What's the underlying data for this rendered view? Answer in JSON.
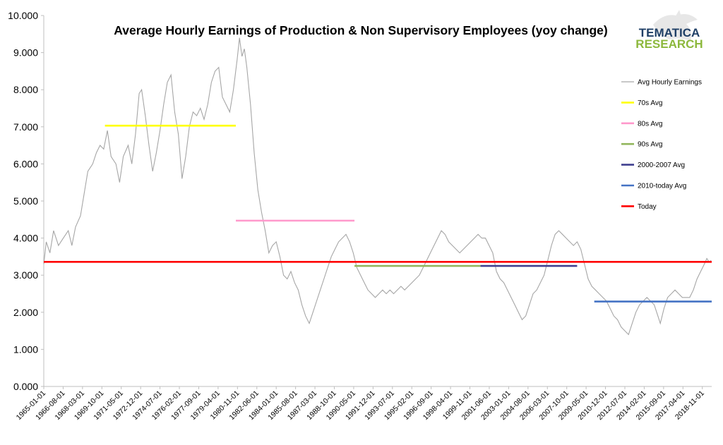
{
  "chart_data": {
    "type": "line",
    "title": "Average Hourly Earnings of Production & Non Supervisory Employees (yoy change)",
    "ylim": [
      0,
      10
    ],
    "y_ticks": [
      "0.000",
      "1.000",
      "2.000",
      "3.000",
      "4.000",
      "5.000",
      "6.000",
      "7.000",
      "8.000",
      "9.000",
      "10.000"
    ],
    "x_range": [
      1965.0,
      2019.6
    ],
    "x_ticks": [
      "1965-01-01",
      "1966-08-01",
      "1968-03-01",
      "1969-10-01",
      "1971-05-01",
      "1972-12-01",
      "1974-07-01",
      "1976-02-01",
      "1977-09-01",
      "1979-04-01",
      "1980-11-01",
      "1982-06-01",
      "1984-01-01",
      "1985-08-01",
      "1987-03-01",
      "1988-10-01",
      "1990-05-01",
      "1991-12-01",
      "1993-07-01",
      "1995-02-01",
      "1996-09-01",
      "1998-04-01",
      "1999-11-01",
      "2001-06-01",
      "2003-01-01",
      "2004-08-01",
      "2006-03-01",
      "2007-10-01",
      "2009-05-01",
      "2010-12-01",
      "2012-07-01",
      "2014-02-01",
      "2015-09-01",
      "2017-04-01",
      "2018-11-01"
    ],
    "series": [
      {
        "name": "Avg Hourly Earnings",
        "color": "#a6a6a6",
        "points": [
          [
            1965.0,
            3.3
          ],
          [
            1965.2,
            3.9
          ],
          [
            1965.5,
            3.6
          ],
          [
            1965.8,
            4.2
          ],
          [
            1966.2,
            3.8
          ],
          [
            1966.6,
            4.0
          ],
          [
            1967.0,
            4.2
          ],
          [
            1967.3,
            3.8
          ],
          [
            1967.6,
            4.3
          ],
          [
            1968.0,
            4.6
          ],
          [
            1968.3,
            5.2
          ],
          [
            1968.6,
            5.8
          ],
          [
            1969.0,
            6.0
          ],
          [
            1969.3,
            6.3
          ],
          [
            1969.6,
            6.5
          ],
          [
            1969.9,
            6.4
          ],
          [
            1970.2,
            6.9
          ],
          [
            1970.5,
            6.2
          ],
          [
            1970.9,
            6.0
          ],
          [
            1971.2,
            5.5
          ],
          [
            1971.5,
            6.2
          ],
          [
            1971.9,
            6.5
          ],
          [
            1972.2,
            6.0
          ],
          [
            1972.5,
            6.8
          ],
          [
            1972.8,
            7.9
          ],
          [
            1973.0,
            8.0
          ],
          [
            1973.3,
            7.3
          ],
          [
            1973.6,
            6.5
          ],
          [
            1973.9,
            5.8
          ],
          [
            1974.2,
            6.3
          ],
          [
            1974.5,
            6.9
          ],
          [
            1974.8,
            7.6
          ],
          [
            1975.1,
            8.2
          ],
          [
            1975.4,
            8.4
          ],
          [
            1975.7,
            7.4
          ],
          [
            1976.0,
            6.8
          ],
          [
            1976.3,
            5.6
          ],
          [
            1976.6,
            6.2
          ],
          [
            1976.9,
            7.0
          ],
          [
            1977.2,
            7.4
          ],
          [
            1977.5,
            7.3
          ],
          [
            1977.8,
            7.5
          ],
          [
            1978.1,
            7.2
          ],
          [
            1978.4,
            7.6
          ],
          [
            1978.7,
            8.2
          ],
          [
            1979.0,
            8.5
          ],
          [
            1979.3,
            8.6
          ],
          [
            1979.6,
            7.8
          ],
          [
            1979.9,
            7.6
          ],
          [
            1980.2,
            7.4
          ],
          [
            1980.5,
            8.0
          ],
          [
            1980.8,
            8.8
          ],
          [
            1981.0,
            9.4
          ],
          [
            1981.2,
            8.9
          ],
          [
            1981.4,
            9.1
          ],
          [
            1981.6,
            8.6
          ],
          [
            1981.9,
            7.6
          ],
          [
            1982.2,
            6.3
          ],
          [
            1982.5,
            5.3
          ],
          [
            1982.8,
            4.7
          ],
          [
            1983.1,
            4.2
          ],
          [
            1983.4,
            3.6
          ],
          [
            1983.7,
            3.8
          ],
          [
            1984.0,
            3.9
          ],
          [
            1984.3,
            3.5
          ],
          [
            1984.6,
            3.0
          ],
          [
            1984.9,
            2.9
          ],
          [
            1985.2,
            3.1
          ],
          [
            1985.5,
            2.8
          ],
          [
            1985.8,
            2.6
          ],
          [
            1986.1,
            2.2
          ],
          [
            1986.4,
            1.9
          ],
          [
            1986.7,
            1.7
          ],
          [
            1987.0,
            2.0
          ],
          [
            1987.3,
            2.3
          ],
          [
            1987.6,
            2.6
          ],
          [
            1987.9,
            2.9
          ],
          [
            1988.2,
            3.2
          ],
          [
            1988.5,
            3.5
          ],
          [
            1988.8,
            3.7
          ],
          [
            1989.1,
            3.9
          ],
          [
            1989.4,
            4.0
          ],
          [
            1989.7,
            4.1
          ],
          [
            1990.0,
            3.9
          ],
          [
            1990.3,
            3.6
          ],
          [
            1990.6,
            3.2
          ],
          [
            1990.9,
            3.0
          ],
          [
            1991.2,
            2.8
          ],
          [
            1991.5,
            2.6
          ],
          [
            1991.8,
            2.5
          ],
          [
            1992.1,
            2.4
          ],
          [
            1992.4,
            2.5
          ],
          [
            1992.7,
            2.6
          ],
          [
            1993.0,
            2.5
          ],
          [
            1993.3,
            2.6
          ],
          [
            1993.6,
            2.5
          ],
          [
            1993.9,
            2.6
          ],
          [
            1994.2,
            2.7
          ],
          [
            1994.5,
            2.6
          ],
          [
            1994.8,
            2.7
          ],
          [
            1995.1,
            2.8
          ],
          [
            1995.4,
            2.9
          ],
          [
            1995.7,
            3.0
          ],
          [
            1996.0,
            3.2
          ],
          [
            1996.3,
            3.4
          ],
          [
            1996.6,
            3.6
          ],
          [
            1996.9,
            3.8
          ],
          [
            1997.2,
            4.0
          ],
          [
            1997.5,
            4.2
          ],
          [
            1997.8,
            4.1
          ],
          [
            1998.1,
            3.9
          ],
          [
            1998.4,
            3.8
          ],
          [
            1998.7,
            3.7
          ],
          [
            1999.0,
            3.6
          ],
          [
            1999.3,
            3.7
          ],
          [
            1999.6,
            3.8
          ],
          [
            1999.9,
            3.9
          ],
          [
            2000.2,
            4.0
          ],
          [
            2000.5,
            4.1
          ],
          [
            2000.8,
            4.0
          ],
          [
            2001.1,
            4.0
          ],
          [
            2001.4,
            3.8
          ],
          [
            2001.7,
            3.6
          ],
          [
            2002.0,
            3.1
          ],
          [
            2002.3,
            2.9
          ],
          [
            2002.6,
            2.8
          ],
          [
            2002.9,
            2.6
          ],
          [
            2003.2,
            2.4
          ],
          [
            2003.5,
            2.2
          ],
          [
            2003.8,
            2.0
          ],
          [
            2004.1,
            1.8
          ],
          [
            2004.4,
            1.9
          ],
          [
            2004.7,
            2.2
          ],
          [
            2005.0,
            2.5
          ],
          [
            2005.3,
            2.6
          ],
          [
            2005.6,
            2.8
          ],
          [
            2005.9,
            3.0
          ],
          [
            2006.2,
            3.4
          ],
          [
            2006.5,
            3.8
          ],
          [
            2006.8,
            4.1
          ],
          [
            2007.1,
            4.2
          ],
          [
            2007.4,
            4.1
          ],
          [
            2007.7,
            4.0
          ],
          [
            2008.0,
            3.9
          ],
          [
            2008.3,
            3.8
          ],
          [
            2008.6,
            3.9
          ],
          [
            2008.9,
            3.7
          ],
          [
            2009.2,
            3.3
          ],
          [
            2009.5,
            2.9
          ],
          [
            2009.8,
            2.7
          ],
          [
            2010.1,
            2.6
          ],
          [
            2010.4,
            2.5
          ],
          [
            2010.7,
            2.4
          ],
          [
            2011.0,
            2.3
          ],
          [
            2011.3,
            2.1
          ],
          [
            2011.6,
            1.9
          ],
          [
            2011.9,
            1.8
          ],
          [
            2012.2,
            1.6
          ],
          [
            2012.5,
            1.5
          ],
          [
            2012.8,
            1.4
          ],
          [
            2013.1,
            1.7
          ],
          [
            2013.4,
            2.0
          ],
          [
            2013.7,
            2.2
          ],
          [
            2014.0,
            2.3
          ],
          [
            2014.3,
            2.4
          ],
          [
            2014.6,
            2.3
          ],
          [
            2014.9,
            2.2
          ],
          [
            2015.2,
            1.9
          ],
          [
            2015.4,
            1.7
          ],
          [
            2015.7,
            2.1
          ],
          [
            2016.0,
            2.4
          ],
          [
            2016.3,
            2.5
          ],
          [
            2016.6,
            2.6
          ],
          [
            2016.9,
            2.5
          ],
          [
            2017.2,
            2.4
          ],
          [
            2017.5,
            2.4
          ],
          [
            2017.8,
            2.4
          ],
          [
            2018.1,
            2.6
          ],
          [
            2018.4,
            2.9
          ],
          [
            2018.7,
            3.1
          ],
          [
            2019.0,
            3.3
          ],
          [
            2019.2,
            3.45
          ],
          [
            2019.4,
            3.35
          ],
          [
            2019.55,
            3.4
          ]
        ]
      },
      {
        "name": "70s Avg",
        "color": "#ffff00",
        "value": 7.03,
        "x_start": 1970.0,
        "x_end": 1980.7
      },
      {
        "name": "80s Avg",
        "color": "#ff99cc",
        "value": 4.47,
        "x_start": 1980.7,
        "x_end": 1990.4
      },
      {
        "name": "90s Avg",
        "color": "#92b65c",
        "value": 3.25,
        "x_start": 1990.4,
        "x_end": 2000.7
      },
      {
        "name": "2000-2007 Avg",
        "color": "#3f3f8f",
        "value": 3.25,
        "x_start": 2000.7,
        "x_end": 2008.6
      },
      {
        "name": "2010-today Avg",
        "color": "#4472c4",
        "value": 2.29,
        "x_start": 2010.0,
        "x_end": 2019.6
      },
      {
        "name": "Today",
        "color": "#ff0000",
        "value": 3.36,
        "x_start": 1965.0,
        "x_end": 2019.6
      }
    ]
  },
  "logo": {
    "line1": "TEMATICA",
    "line2": "RESEARCH",
    "line1_color": "#1f3f66",
    "line2_color": "#8cb83c"
  }
}
